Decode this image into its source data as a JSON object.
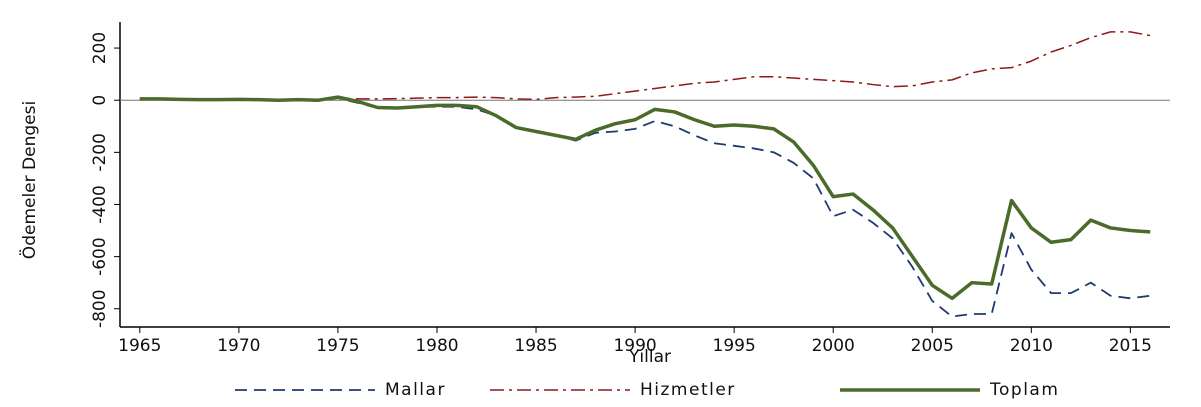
{
  "chart_data": {
    "type": "line",
    "x_label": "Yıllar",
    "y_label": "Ödemeler Dengesi",
    "x": [
      1965,
      1966,
      1967,
      1968,
      1969,
      1970,
      1971,
      1972,
      1973,
      1974,
      1975,
      1976,
      1977,
      1978,
      1979,
      1980,
      1981,
      1982,
      1983,
      1984,
      1985,
      1986,
      1987,
      1988,
      1989,
      1990,
      1991,
      1992,
      1993,
      1994,
      1995,
      1996,
      1997,
      1998,
      1999,
      2000,
      2001,
      2002,
      2003,
      2004,
      2005,
      2006,
      2007,
      2008,
      2009,
      2010,
      2011,
      2012,
      2013,
      2014,
      2015,
      2016
    ],
    "series": [
      {
        "name": "Mallar",
        "color": "#1f3a6e",
        "style": "dashed",
        "values": [
          5,
          5,
          3,
          2,
          2,
          3,
          2,
          0,
          2,
          -3,
          8,
          -10,
          -30,
          -30,
          -25,
          -25,
          -25,
          -35,
          -60,
          -105,
          -120,
          -135,
          -155,
          -125,
          -120,
          -110,
          -80,
          -100,
          -135,
          -165,
          -175,
          -185,
          -200,
          -240,
          -300,
          -445,
          -420,
          -470,
          -530,
          -640,
          -770,
          -830,
          -820,
          -820,
          -510,
          -650,
          -740,
          -740,
          -700,
          -750,
          -760,
          -750
        ]
      },
      {
        "name": "Hizmetler",
        "color": "#8b1a1a",
        "style": "dashdot",
        "values": [
          2,
          2,
          2,
          1,
          1,
          2,
          2,
          2,
          3,
          3,
          8,
          5,
          5,
          6,
          8,
          10,
          10,
          12,
          10,
          5,
          3,
          10,
          12,
          15,
          25,
          35,
          45,
          55,
          65,
          70,
          80,
          90,
          90,
          85,
          80,
          75,
          70,
          60,
          52,
          55,
          70,
          78,
          105,
          120,
          125,
          150,
          185,
          210,
          240,
          262,
          262,
          248
        ]
      },
      {
        "name": "Toplam",
        "color": "#4a6b2a",
        "style": "solid",
        "values": [
          5,
          5,
          3,
          2,
          2,
          3,
          2,
          0,
          2,
          0,
          12,
          -5,
          -28,
          -30,
          -25,
          -20,
          -20,
          -25,
          -60,
          -105,
          -120,
          -135,
          -150,
          -115,
          -90,
          -75,
          -35,
          -45,
          -75,
          -100,
          -95,
          -100,
          -110,
          -160,
          -250,
          -370,
          -360,
          -420,
          -490,
          -600,
          -710,
          -760,
          -700,
          -705,
          -385,
          -490,
          -545,
          -535,
          -460,
          -490,
          -500,
          -505
        ]
      }
    ],
    "xlim": [
      1964,
      2017
    ],
    "xticks": [
      1965,
      1970,
      1975,
      1980,
      1985,
      1990,
      1995,
      2000,
      2005,
      2010,
      2015
    ],
    "ylim": [
      -870,
      300
    ],
    "yticks": [
      200,
      0,
      -200,
      -400,
      -600,
      -800
    ]
  }
}
